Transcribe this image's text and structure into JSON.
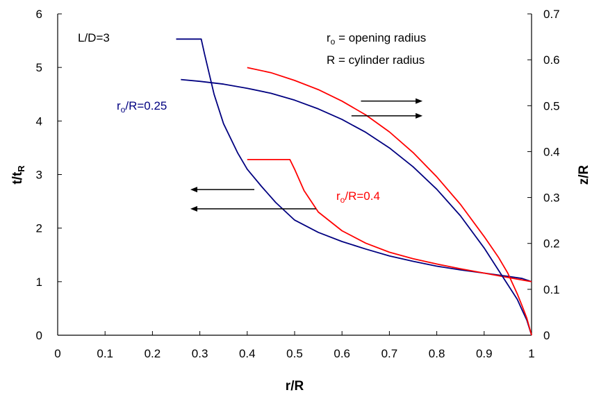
{
  "chart_data": {
    "type": "line",
    "xlabel": "r/R",
    "ylabel": {
      "main": "t/t",
      "sub": "R"
    },
    "y2label": "z/R",
    "xlim": [
      0,
      1
    ],
    "ylim": [
      0,
      6
    ],
    "y2lim": [
      0,
      0.7
    ],
    "xticks": [
      "0",
      "0.1",
      "0.2",
      "0.3",
      "0.4",
      "0.5",
      "0.6",
      "0.7",
      "0.8",
      "0.9",
      "1"
    ],
    "yticks": [
      "0",
      "1",
      "2",
      "3",
      "4",
      "5",
      "6"
    ],
    "y2ticks": [
      "0",
      "0.1",
      "0.2",
      "0.3",
      "0.4",
      "0.5",
      "0.6",
      "0.7"
    ],
    "grid": false,
    "colors": {
      "blue": "#000080",
      "red": "#ff0000",
      "arrow": "#000000"
    },
    "annotations": {
      "ld": "L/D=3",
      "legend1": {
        "a": "r",
        "sub": "o",
        "b": " = opening radius"
      },
      "legend2": "R = cylinder radius",
      "blue_label": {
        "a": "r",
        "sub": "o",
        "b": "/R=0.25"
      },
      "red_label": {
        "a": "r",
        "sub": "o",
        "b": "/R=0.4"
      }
    },
    "series": [
      {
        "color": "blue",
        "axis": "left",
        "x": [
          0.25,
          0.303,
          0.31,
          0.33,
          0.35,
          0.38,
          0.4,
          0.43,
          0.46,
          0.5,
          0.55,
          0.6,
          0.65,
          0.7,
          0.75,
          0.8,
          0.85,
          0.9,
          0.95,
          0.98,
          1.0
        ],
        "y": [
          5.53,
          5.53,
          5.25,
          4.5,
          3.95,
          3.4,
          3.1,
          2.78,
          2.48,
          2.15,
          1.92,
          1.75,
          1.61,
          1.48,
          1.38,
          1.29,
          1.22,
          1.16,
          1.1,
          1.06,
          1.0
        ]
      },
      {
        "color": "red",
        "axis": "left",
        "x": [
          0.4,
          0.49,
          0.5,
          0.52,
          0.55,
          0.6,
          0.65,
          0.7,
          0.75,
          0.8,
          0.85,
          0.9,
          0.95,
          1.0
        ],
        "y": [
          3.28,
          3.28,
          3.1,
          2.7,
          2.3,
          1.95,
          1.72,
          1.55,
          1.43,
          1.33,
          1.24,
          1.16,
          1.08,
          1.0
        ]
      },
      {
        "color": "blue",
        "axis": "right",
        "x": [
          0.26,
          0.3,
          0.35,
          0.4,
          0.45,
          0.5,
          0.55,
          0.6,
          0.65,
          0.7,
          0.75,
          0.8,
          0.85,
          0.9,
          0.93,
          0.95,
          0.97,
          0.98,
          0.99,
          1.0
        ],
        "y": [
          0.557,
          0.553,
          0.547,
          0.538,
          0.527,
          0.512,
          0.493,
          0.47,
          0.442,
          0.408,
          0.367,
          0.318,
          0.26,
          0.19,
          0.142,
          0.11,
          0.078,
          0.055,
          0.033,
          0.0
        ]
      },
      {
        "color": "red",
        "axis": "right",
        "x": [
          0.4,
          0.45,
          0.5,
          0.55,
          0.6,
          0.65,
          0.7,
          0.75,
          0.8,
          0.85,
          0.9,
          0.93,
          0.95,
          0.97,
          0.98,
          0.99,
          1.0
        ],
        "y": [
          0.583,
          0.572,
          0.555,
          0.535,
          0.51,
          0.48,
          0.443,
          0.398,
          0.345,
          0.285,
          0.215,
          0.17,
          0.135,
          0.09,
          0.064,
          0.037,
          0.0
        ]
      }
    ],
    "arrows": [
      {
        "axis": "right",
        "x1": 0.64,
        "x2": 0.77,
        "y": 0.51
      },
      {
        "axis": "right",
        "x1": 0.62,
        "x2": 0.77,
        "y": 0.478
      },
      {
        "axis": "left",
        "x1": 0.415,
        "x2": 0.28,
        "y": 2.72
      },
      {
        "axis": "left",
        "x1": 0.545,
        "x2": 0.28,
        "y": 2.36
      }
    ]
  }
}
